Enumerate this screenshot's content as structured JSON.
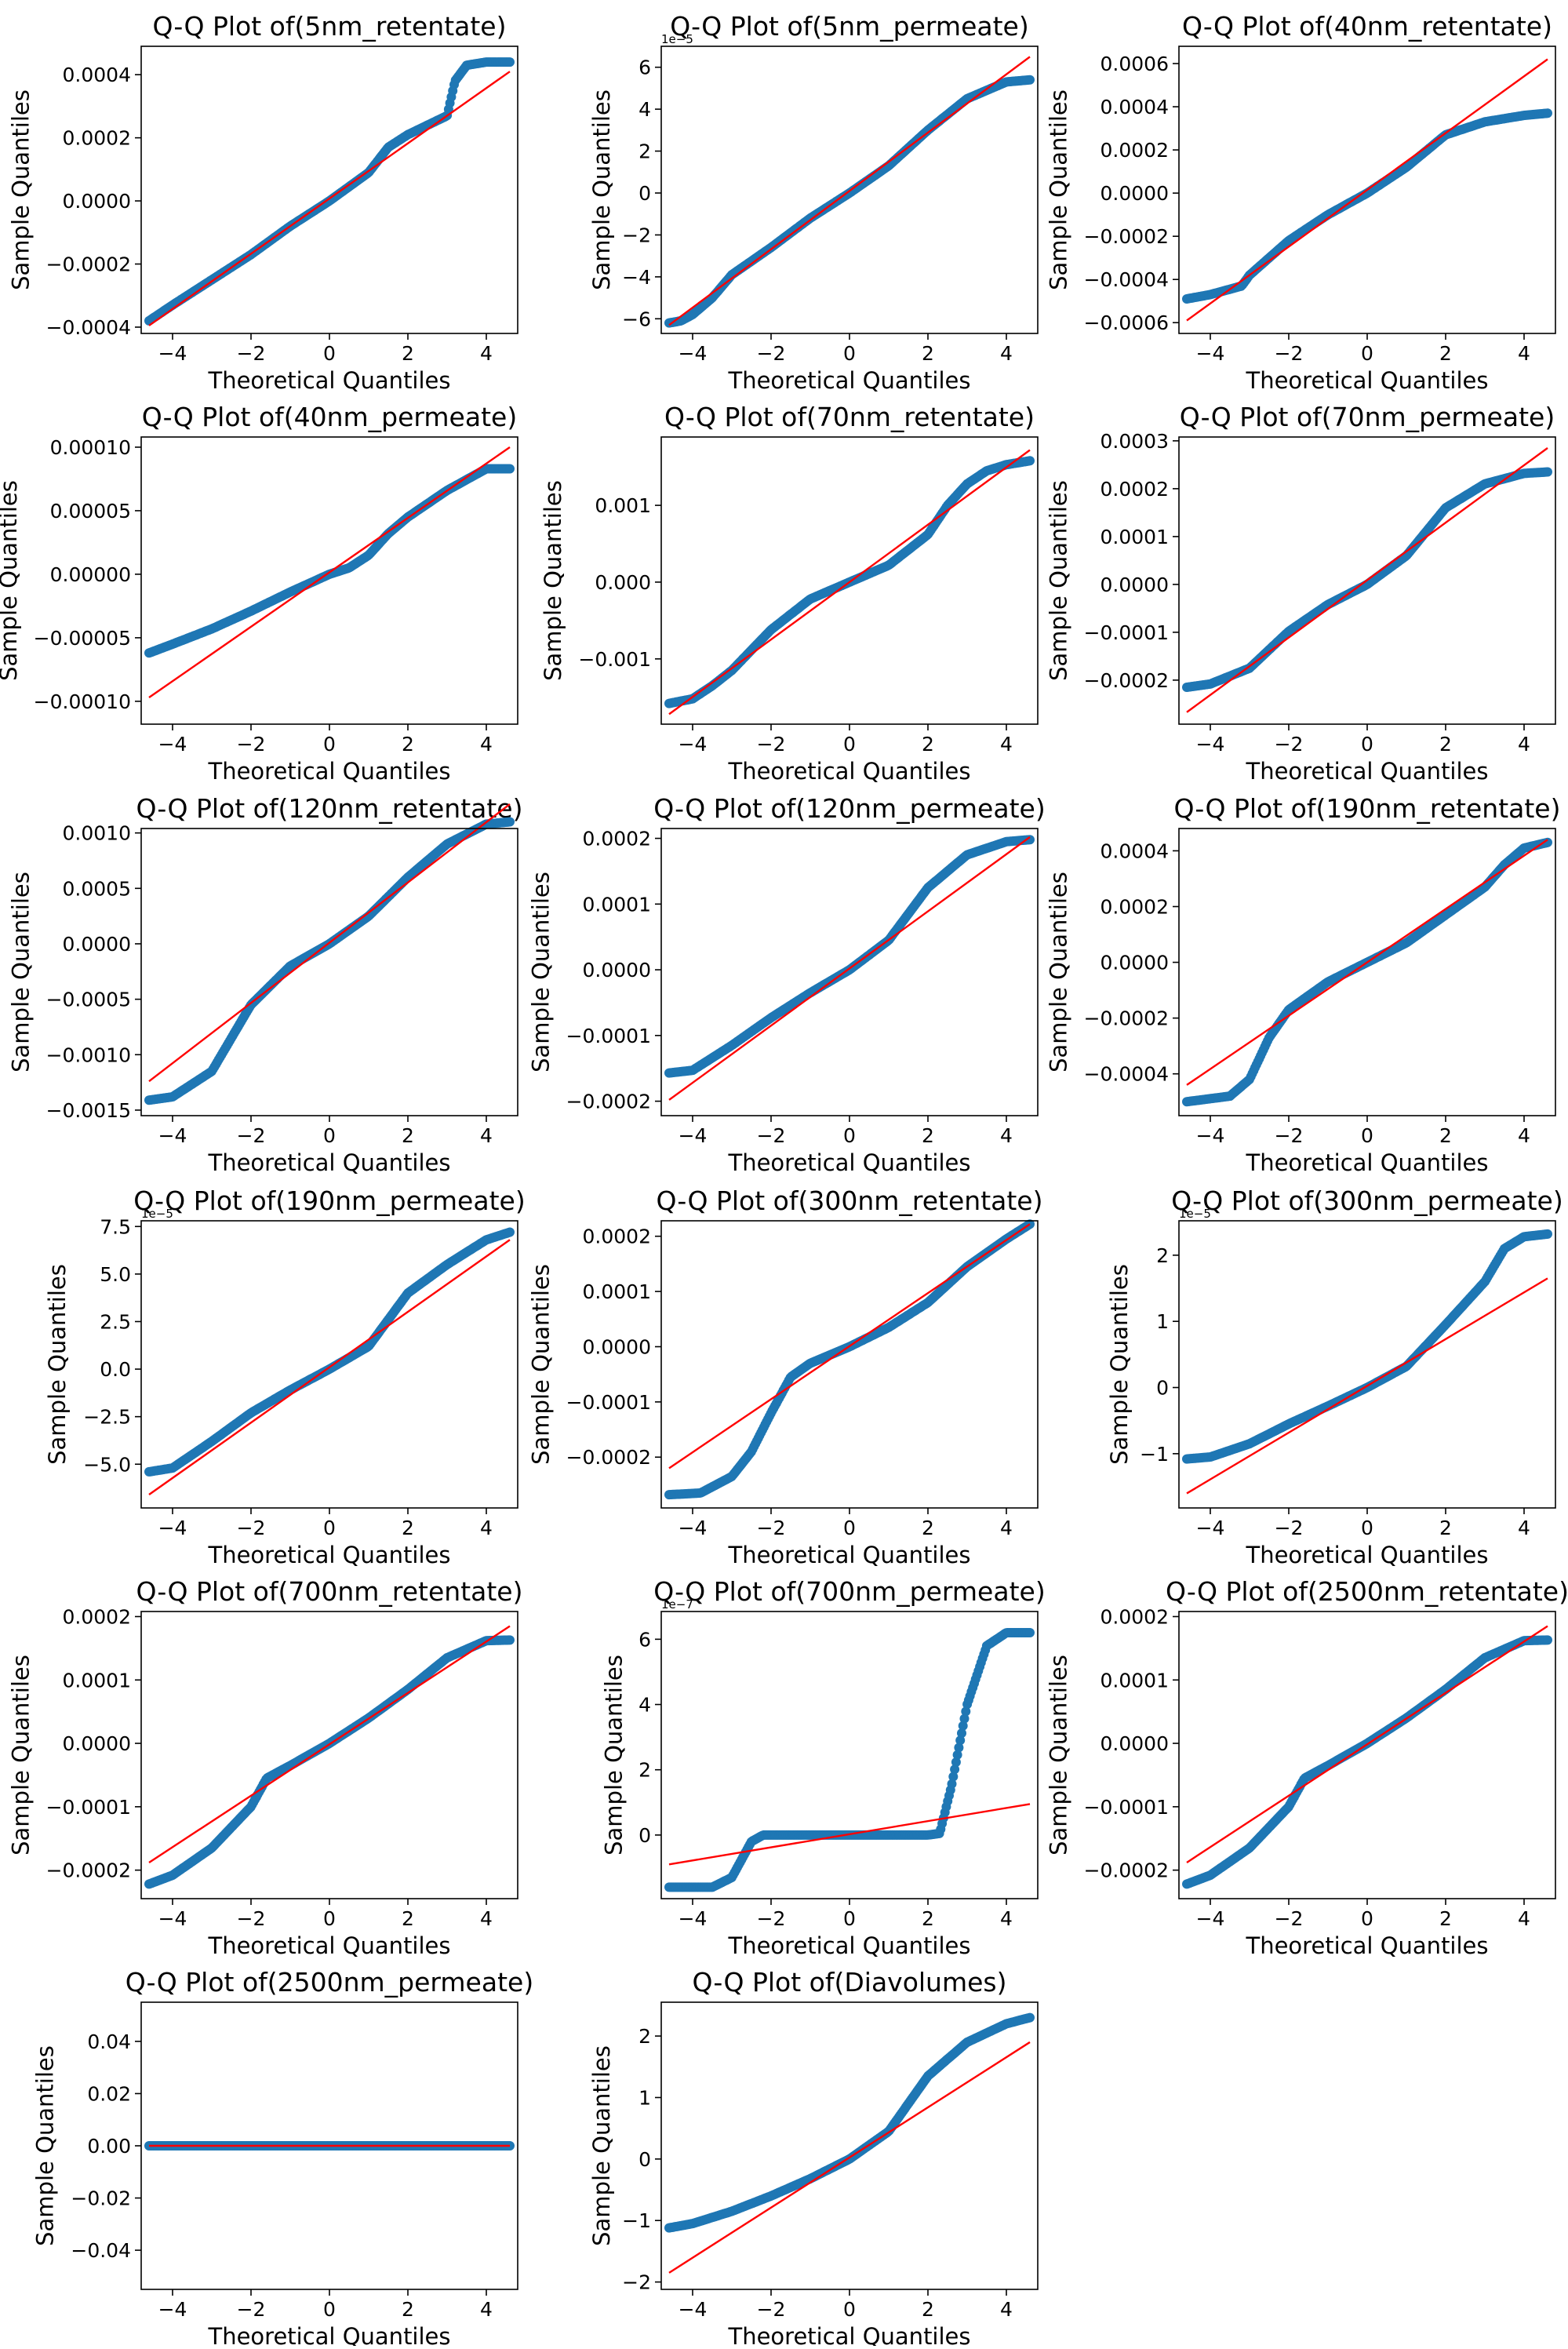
{
  "figure": {
    "xlabel": "Theoretical Quantiles",
    "ylabel": "Sample Quantiles",
    "marker_color": "#1f77b4",
    "line_color": "#ff0000"
  },
  "chart_data": [
    {
      "type": "scatter",
      "title": "Q-Q Plot of(5nm_retentate)",
      "xlim": [
        -4.8,
        4.8
      ],
      "ylim": [
        -0.00042,
        0.00049
      ],
      "xticks": [
        -4,
        -2,
        0,
        2,
        4
      ],
      "yticks": [
        -0.0004,
        -0.0002,
        0.0,
        0.0002,
        0.0004
      ],
      "ytick_labels": [
        "−0.0004",
        "−0.0002",
        "0.0000",
        "0.0002",
        "0.0004"
      ],
      "offset_text": "",
      "line_y": [
        -0.000395,
        0.00041
      ],
      "curve_x": [
        -4.6,
        -4,
        -3,
        -2,
        -1,
        0,
        1,
        1.5,
        2,
        2.5,
        3,
        3.2,
        3.5,
        4,
        4.6
      ],
      "curve_y": [
        -0.00038,
        -0.00033,
        -0.00025,
        -0.00017,
        -8e-05,
        0.0,
        9e-05,
        0.00017,
        0.00021,
        0.00024,
        0.00027,
        0.00038,
        0.00043,
        0.00044,
        0.00044
      ]
    },
    {
      "type": "scatter",
      "title": "Q-Q Plot of(5nm_permeate)",
      "xlim": [
        -4.8,
        4.8
      ],
      "ylim": [
        -6.7,
        7.0
      ],
      "xticks": [
        -4,
        -2,
        0,
        2,
        4
      ],
      "yticks": [
        -6,
        -4,
        -2,
        0,
        2,
        4,
        6
      ],
      "ytick_labels": [
        "−6",
        "−4",
        "−2",
        "0",
        "2",
        "4",
        "6"
      ],
      "offset_text": "1e−5",
      "line_y": [
        -6.3,
        6.5
      ],
      "curve_x": [
        -4.6,
        -4.3,
        -4,
        -3.5,
        -3,
        -2,
        -1,
        0,
        1,
        2,
        3,
        4,
        4.6
      ],
      "curve_y": [
        -6.2,
        -6.1,
        -5.8,
        -5.0,
        -3.9,
        -2.6,
        -1.2,
        0.0,
        1.3,
        3.0,
        4.5,
        5.3,
        5.4
      ]
    },
    {
      "type": "scatter",
      "title": "Q-Q Plot of(40nm_retentate)",
      "xlim": [
        -4.8,
        4.8
      ],
      "ylim": [
        -0.00065,
        0.00068
      ],
      "xticks": [
        -4,
        -2,
        0,
        2,
        4
      ],
      "yticks": [
        -0.0006,
        -0.0004,
        -0.0002,
        0.0,
        0.0002,
        0.0004,
        0.0006
      ],
      "ytick_labels": [
        "−0.0006",
        "−0.0004",
        "−0.0002",
        "0.0000",
        "0.0002",
        "0.0004",
        "0.0006"
      ],
      "offset_text": "",
      "line_y": [
        -0.00059,
        0.00062
      ],
      "curve_x": [
        -4.6,
        -4,
        -3.2,
        -3,
        -2,
        -1,
        0,
        1,
        2,
        3,
        4,
        4.6
      ],
      "curve_y": [
        -0.00049,
        -0.00047,
        -0.00043,
        -0.00038,
        -0.00022,
        -0.0001,
        0.0,
        0.00012,
        0.00027,
        0.00033,
        0.00036,
        0.00037
      ]
    },
    {
      "type": "scatter",
      "title": "Q-Q Plot of(40nm_permeate)",
      "xlim": [
        -4.8,
        4.8
      ],
      "ylim": [
        -0.000118,
        0.000108
      ],
      "xticks": [
        -4,
        -2,
        0,
        2,
        4
      ],
      "yticks": [
        -0.0001,
        -5e-05,
        0.0,
        5e-05,
        0.0001
      ],
      "ytick_labels": [
        "−0.00010",
        "−0.00005",
        "0.00000",
        "0.00005",
        "0.00010"
      ],
      "offset_text": "",
      "line_y": [
        -9.7e-05,
        0.0001
      ],
      "curve_x": [
        -4.6,
        -4,
        -3,
        -2,
        -1,
        0,
        0.5,
        1,
        1.5,
        2,
        3,
        4,
        4.6
      ],
      "curve_y": [
        -6.2e-05,
        -5.5e-05,
        -4.3e-05,
        -2.9e-05,
        -1.4e-05,
        0.0,
        5e-06,
        1.5e-05,
        3.2e-05,
        4.5e-05,
        6.6e-05,
        8.3e-05,
        8.3e-05
      ]
    },
    {
      "type": "scatter",
      "title": "Q-Q Plot of(70nm_retentate)",
      "xlim": [
        -4.8,
        4.8
      ],
      "ylim": [
        -0.00185,
        0.00189
      ],
      "xticks": [
        -4,
        -2,
        0,
        2,
        4
      ],
      "yticks": [
        -0.001,
        0.0,
        0.001
      ],
      "ytick_labels": [
        "−0.001",
        "0.000",
        "0.001"
      ],
      "offset_text": "",
      "line_y": [
        -0.00172,
        0.00172
      ],
      "curve_x": [
        -4.6,
        -4,
        -3.5,
        -3,
        -2,
        -1,
        0,
        1,
        2,
        2.5,
        3,
        3.5,
        4,
        4.6
      ],
      "curve_y": [
        -0.00158,
        -0.00152,
        -0.00135,
        -0.00115,
        -0.00062,
        -0.00022,
        0.0,
        0.00022,
        0.00062,
        0.001,
        0.00128,
        0.00145,
        0.00153,
        0.00158
      ]
    },
    {
      "type": "scatter",
      "title": "Q-Q Plot of(70nm_permeate)",
      "xlim": [
        -4.8,
        4.8
      ],
      "ylim": [
        -0.000292,
        0.000308
      ],
      "xticks": [
        -4,
        -2,
        0,
        2,
        4
      ],
      "yticks": [
        -0.0002,
        -0.0001,
        0.0,
        0.0001,
        0.0002,
        0.0003
      ],
      "ytick_labels": [
        "−0.0002",
        "−0.0001",
        "0.0000",
        "0.0001",
        "0.0002",
        "0.0003"
      ],
      "offset_text": "",
      "line_y": [
        -0.000267,
        0.000285
      ],
      "curve_x": [
        -4.6,
        -4,
        -3,
        -2,
        -1,
        0,
        1,
        2,
        3,
        4,
        4.6
      ],
      "curve_y": [
        -0.000215,
        -0.000208,
        -0.000175,
        -9.8e-05,
        -4.2e-05,
        0.0,
        6e-05,
        0.00016,
        0.00021,
        0.000232,
        0.000235
      ]
    },
    {
      "type": "scatter",
      "title": "Q-Q Plot of(120nm_retentate)",
      "xlim": [
        -4.8,
        4.8
      ],
      "ylim": [
        -0.00155,
        0.00104
      ],
      "xticks": [
        -4,
        -2,
        0,
        2,
        4
      ],
      "yticks": [
        -0.0015,
        -0.001,
        -0.0005,
        0.0,
        0.0005,
        0.001
      ],
      "ytick_labels": [
        "−0.0015",
        "−0.0010",
        "−0.0005",
        "0.0000",
        "0.0005",
        "0.0010"
      ],
      "offset_text": "",
      "line_y": [
        -0.00124,
        0.00126
      ],
      "curve_x": [
        -4.6,
        -4,
        -3,
        -2,
        -1,
        0,
        1,
        2,
        3,
        4,
        4.6
      ],
      "curve_y": [
        -0.00141,
        -0.00138,
        -0.00115,
        -0.00055,
        -0.0002,
        0.0,
        0.00025,
        0.0006,
        0.0009,
        0.00108,
        0.0011
      ]
    },
    {
      "type": "scatter",
      "title": "Q-Q Plot of(120nm_permeate)",
      "xlim": [
        -4.8,
        4.8
      ],
      "ylim": [
        -0.000222,
        0.000215
      ],
      "xticks": [
        -4,
        -2,
        0,
        2,
        4
      ],
      "yticks": [
        -0.0002,
        -0.0001,
        0.0,
        0.0001,
        0.0002
      ],
      "ytick_labels": [
        "−0.0002",
        "−0.0001",
        "0.0000",
        "0.0001",
        "0.0002"
      ],
      "offset_text": "",
      "line_y": [
        -0.000198,
        0.000202
      ],
      "curve_x": [
        -4.6,
        -4,
        -3,
        -2,
        -1,
        0,
        1,
        2,
        3,
        4,
        4.6
      ],
      "curve_y": [
        -0.000157,
        -0.000153,
        -0.000115,
        -7.3e-05,
        -3.5e-05,
        0.0,
        4.5e-05,
        0.000125,
        0.000175,
        0.000195,
        0.000198
      ]
    },
    {
      "type": "scatter",
      "title": "Q-Q Plot of(190nm_retentate)",
      "xlim": [
        -4.8,
        4.8
      ],
      "ylim": [
        -0.00055,
        0.00048
      ],
      "xticks": [
        -4,
        -2,
        0,
        2,
        4
      ],
      "yticks": [
        -0.0004,
        -0.0002,
        0.0,
        0.0002,
        0.0004
      ],
      "ytick_labels": [
        "−0.0004",
        "−0.0002",
        "0.0000",
        "0.0002",
        "0.0004"
      ],
      "offset_text": "",
      "line_y": [
        -0.00044,
        0.00044
      ],
      "curve_x": [
        -4.6,
        -3.5,
        -3,
        -2.5,
        -2,
        -1,
        0,
        1,
        2,
        3,
        3.5,
        4,
        4.6
      ],
      "curve_y": [
        -0.0005,
        -0.00048,
        -0.00042,
        -0.00027,
        -0.00017,
        -7e-05,
        0.0,
        7e-05,
        0.00017,
        0.00027,
        0.00035,
        0.00041,
        0.00043
      ]
    },
    {
      "type": "scatter",
      "title": "Q-Q Plot of(190nm_permeate)",
      "xlim": [
        -4.8,
        4.8
      ],
      "ylim": [
        -7.3,
        7.8
      ],
      "xticks": [
        -4,
        -2,
        0,
        2,
        4
      ],
      "yticks": [
        -5.0,
        -2.5,
        0.0,
        2.5,
        5.0,
        7.5
      ],
      "ytick_labels": [
        "−5.0",
        "−2.5",
        "0.0",
        "2.5",
        "5.0",
        "7.5"
      ],
      "offset_text": "1e−5",
      "line_y": [
        -6.6,
        6.8
      ],
      "curve_x": [
        -4.6,
        -4,
        -3,
        -2,
        -1,
        0,
        1,
        1.5,
        2,
        3,
        4,
        4.6
      ],
      "curve_y": [
        -5.4,
        -5.2,
        -3.8,
        -2.3,
        -1.1,
        0.0,
        1.2,
        2.6,
        4.0,
        5.5,
        6.8,
        7.2
      ]
    },
    {
      "type": "scatter",
      "title": "Q-Q Plot of(300nm_retentate)",
      "xlim": [
        -4.8,
        4.8
      ],
      "ylim": [
        -0.000292,
        0.000228
      ],
      "xticks": [
        -4,
        -2,
        0,
        2,
        4
      ],
      "yticks": [
        -0.0002,
        -0.0001,
        0.0,
        0.0001,
        0.0002
      ],
      "ytick_labels": [
        "−0.0002",
        "−0.0001",
        "0.0000",
        "0.0001",
        "0.0002"
      ],
      "offset_text": "",
      "line_y": [
        -0.00022,
        0.000222
      ],
      "curve_x": [
        -4.6,
        -3.8,
        -3,
        -2.5,
        -2,
        -1.5,
        -1,
        0,
        1,
        2,
        3,
        4,
        4.6
      ],
      "curve_y": [
        -0.000268,
        -0.000265,
        -0.000235,
        -0.00019,
        -0.00012,
        -5.5e-05,
        -3e-05,
        0.0,
        3.5e-05,
        8e-05,
        0.000145,
        0.000195,
        0.000222
      ]
    },
    {
      "type": "scatter",
      "title": "Q-Q Plot of(300nm_permeate)",
      "xlim": [
        -4.8,
        4.8
      ],
      "ylim": [
        -1.82,
        2.52
      ],
      "xticks": [
        -4,
        -2,
        0,
        2,
        4
      ],
      "yticks": [
        -1,
        0,
        1,
        2
      ],
      "ytick_labels": [
        "−1",
        "0",
        "1",
        "2"
      ],
      "offset_text": "1e−5",
      "line_y": [
        -1.6,
        1.65
      ],
      "curve_x": [
        -4.6,
        -4,
        -3,
        -2,
        -1,
        0,
        1,
        2,
        3,
        3.5,
        4,
        4.6
      ],
      "curve_y": [
        -1.08,
        -1.05,
        -0.85,
        -0.55,
        -0.28,
        0.0,
        0.32,
        0.95,
        1.6,
        2.1,
        2.28,
        2.32
      ]
    },
    {
      "type": "scatter",
      "title": "Q-Q Plot of(700nm_retentate)",
      "xlim": [
        -4.8,
        4.8
      ],
      "ylim": [
        -0.000245,
        0.000208
      ],
      "xticks": [
        -4,
        -2,
        0,
        2,
        4
      ],
      "yticks": [
        -0.0002,
        -0.0001,
        0.0,
        0.0001,
        0.0002
      ],
      "ytick_labels": [
        "−0.0002",
        "−0.0001",
        "0.0000",
        "0.0001",
        "0.0002"
      ],
      "offset_text": "",
      "line_y": [
        -0.000188,
        0.000185
      ],
      "curve_x": [
        -4.6,
        -4,
        -3,
        -2,
        -1.6,
        -1,
        0,
        1,
        2,
        3,
        4,
        4.6
      ],
      "curve_y": [
        -0.000222,
        -0.000208,
        -0.000165,
        -0.0001,
        -5.5e-05,
        -3.5e-05,
        0.0,
        4e-05,
        8.5e-05,
        0.000135,
        0.000162,
        0.000163
      ]
    },
    {
      "type": "scatter",
      "title": "Q-Q Plot of(700nm_permeate)",
      "xlim": [
        -4.8,
        4.8
      ],
      "ylim": [
        -1.95,
        6.85
      ],
      "xticks": [
        -4,
        -2,
        0,
        2,
        4
      ],
      "yticks": [
        0,
        2,
        4,
        6
      ],
      "ytick_labels": [
        "0",
        "2",
        "4",
        "6"
      ],
      "offset_text": "1e−7",
      "line_y": [
        -0.9,
        0.95
      ],
      "curve_x": [
        -4.6,
        -3.5,
        -3,
        -2.5,
        -2.2,
        0,
        2,
        2.3,
        2.6,
        3,
        3.5,
        4,
        4.6
      ],
      "curve_y": [
        -1.6,
        -1.6,
        -1.3,
        -0.2,
        0.0,
        0.0,
        0.0,
        0.05,
        1.5,
        4.0,
        5.8,
        6.2,
        6.2
      ]
    },
    {
      "type": "scatter",
      "title": "Q-Q Plot of(2500nm_retentate)",
      "xlim": [
        -4.8,
        4.8
      ],
      "ylim": [
        -0.000245,
        0.000208
      ],
      "xticks": [
        -4,
        -2,
        0,
        2,
        4
      ],
      "yticks": [
        -0.0002,
        -0.0001,
        0.0,
        0.0001,
        0.0002
      ],
      "ytick_labels": [
        "−0.0002",
        "−0.0001",
        "0.0000",
        "0.0001",
        "0.0002"
      ],
      "offset_text": "",
      "line_y": [
        -0.000188,
        0.000185
      ],
      "curve_x": [
        -4.6,
        -4,
        -3,
        -2,
        -1.6,
        -1,
        0,
        1,
        2,
        3,
        4,
        4.6
      ],
      "curve_y": [
        -0.000222,
        -0.000208,
        -0.000165,
        -0.0001,
        -5.5e-05,
        -3.5e-05,
        0.0,
        4e-05,
        8.5e-05,
        0.000135,
        0.000162,
        0.000163
      ]
    },
    {
      "type": "scatter",
      "title": "Q-Q Plot of(2500nm_permeate)",
      "xlim": [
        -4.8,
        4.8
      ],
      "ylim": [
        -0.055,
        0.055
      ],
      "xticks": [
        -4,
        -2,
        0,
        2,
        4
      ],
      "yticks": [
        -0.04,
        -0.02,
        0.0,
        0.02,
        0.04
      ],
      "ytick_labels": [
        "−0.04",
        "−0.02",
        "0.00",
        "0.02",
        "0.04"
      ],
      "offset_text": "",
      "line_y": [
        0.0,
        0.0
      ],
      "curve_x": [
        -4.6,
        4.6
      ],
      "curve_y": [
        0.0,
        0.0
      ]
    },
    {
      "type": "scatter",
      "title": "Q-Q Plot of(Diavolumes)",
      "xlim": [
        -4.8,
        4.8
      ],
      "ylim": [
        -2.12,
        2.55
      ],
      "xticks": [
        -4,
        -2,
        0,
        2,
        4
      ],
      "yticks": [
        -2,
        -1,
        0,
        1,
        2
      ],
      "ytick_labels": [
        "−2",
        "−1",
        "0",
        "1",
        "2"
      ],
      "offset_text": "",
      "line_y": [
        -1.85,
        1.9
      ],
      "curve_x": [
        -4.6,
        -4,
        -3,
        -2,
        -1,
        0,
        1,
        2,
        3,
        4,
        4.6
      ],
      "curve_y": [
        -1.12,
        -1.05,
        -0.85,
        -0.6,
        -0.32,
        0.0,
        0.45,
        1.35,
        1.9,
        2.2,
        2.3
      ]
    }
  ]
}
